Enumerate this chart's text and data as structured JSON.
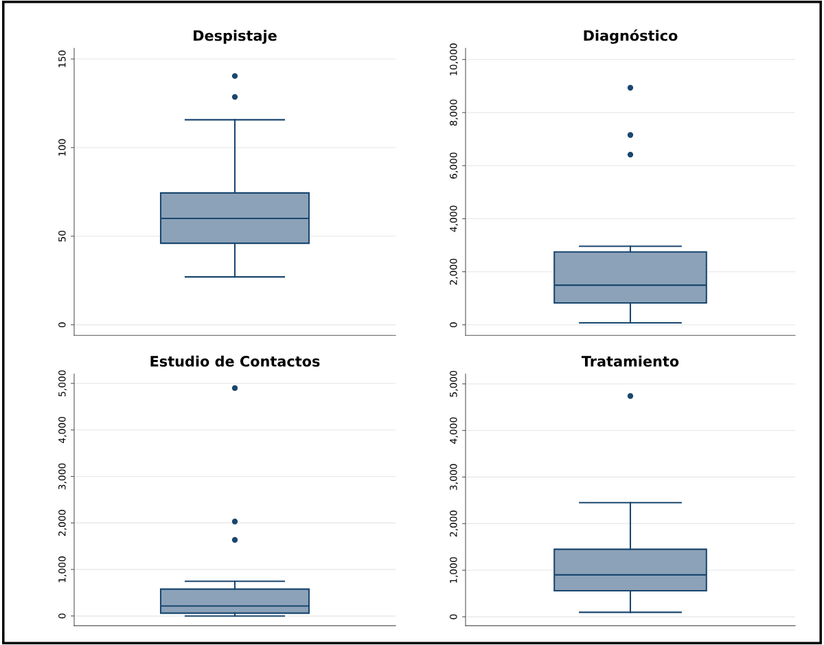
{
  "chart_data": [
    {
      "type": "box",
      "title": "Despistaje",
      "categories": [
        null
      ],
      "boxes": [
        {
          "low": 27,
          "q1": 46,
          "median": 60,
          "q3": 74.4,
          "high": 115.7,
          "outliers": [
            140.4,
            128.6
          ]
        }
      ],
      "color": "#8ca2b8",
      "ylim": [
        -6,
        156
      ],
      "yticks": [
        0,
        50,
        100,
        150
      ],
      "grid": "y",
      "tick_labels": "y"
    },
    {
      "type": "box",
      "title": "Diagnóstico",
      "categories": [
        null
      ],
      "boxes": [
        {
          "low": 72,
          "q1": 823,
          "median": 1494,
          "q3": 2746,
          "high": 2960,
          "outliers": [
            8935,
            7156,
            6413
          ]
        }
      ],
      "color": "#8ca2b8",
      "ylim": [
        -400,
        10420
      ],
      "yticks": [
        {
          "value": 0,
          "label": "0"
        },
        {
          "value": 2000,
          "label": "2,000"
        },
        {
          "value": 4000,
          "label": "4,000"
        },
        {
          "value": 6000,
          "label": "6,000"
        },
        {
          "value": 8000,
          "label": "8,000"
        },
        {
          "value": 10000,
          "label": "10,000"
        }
      ],
      "grid": "y",
      "tick_labels": "y"
    },
    {
      "type": "box",
      "title": "Estudio de Contactos",
      "categories": [
        null
      ],
      "boxes": [
        {
          "low": 0,
          "q1": 61,
          "median": 213,
          "q3": 578,
          "high": 745,
          "outliers": [
            4900,
            2030,
            1635
          ]
        }
      ],
      "color": "#8ca2b8",
      "ylim": [
        -208,
        5200
      ],
      "yticks": [
        {
          "value": 0,
          "label": "0"
        },
        {
          "value": 1000,
          "label": "1,000"
        },
        {
          "value": 2000,
          "label": "2,000"
        },
        {
          "value": 3000,
          "label": "3,000"
        },
        {
          "value": 4000,
          "label": "4,000"
        },
        {
          "value": 5000,
          "label": "5,000"
        }
      ],
      "grid": "y",
      "tick_labels": "y"
    },
    {
      "type": "box",
      "title": "Tratamiento",
      "categories": [
        null
      ],
      "boxes": [
        {
          "low": 97,
          "q1": 560,
          "median": 900,
          "q3": 1450,
          "high": 2450,
          "outliers": [
            4740
          ]
        }
      ],
      "color": "#8ca2b8",
      "ylim": [
        -190,
        5210
      ],
      "yticks": [
        {
          "value": 0,
          "label": "0"
        },
        {
          "value": 1000,
          "label": "1,000"
        },
        {
          "value": 2000,
          "label": "2,000"
        },
        {
          "value": 3000,
          "label": "3,000"
        },
        {
          "value": 4000,
          "label": "4,000"
        },
        {
          "value": 5000,
          "label": "5,000"
        }
      ],
      "grid": "y",
      "tick_labels": "y"
    }
  ]
}
